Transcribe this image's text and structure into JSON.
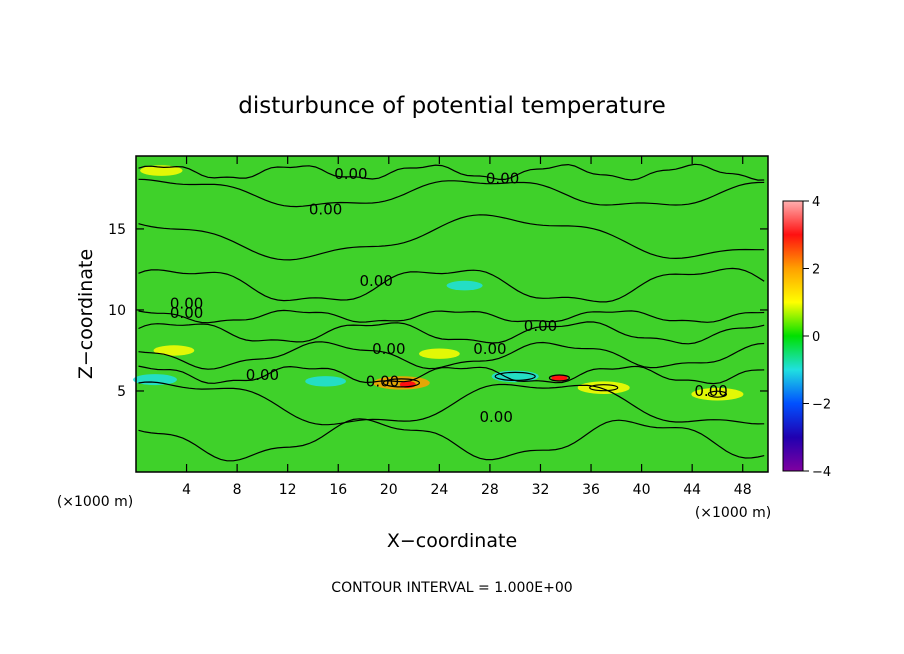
{
  "chart_data": {
    "type": "heatmap",
    "title": "disturbunce of potential temperature",
    "xlabel": "X−coordinate",
    "ylabel": "Z−coordinate",
    "x_unit_left": "(×1000 m)",
    "x_unit_right": "(×1000 m)",
    "footer": "CONTOUR INTERVAL = 1.000E+00",
    "xlim": [
      0,
      50
    ],
    "ylim": [
      0,
      19.5
    ],
    "xticks": [
      4,
      8,
      12,
      16,
      20,
      24,
      28,
      32,
      36,
      40,
      44,
      48
    ],
    "yticks": [
      5,
      10,
      15
    ],
    "colorbar": {
      "range": [
        -4,
        4
      ],
      "ticks": [
        4,
        2,
        0,
        -2,
        -4
      ],
      "colors": [
        "#ffb0b0",
        "#ff1010",
        "#ffa000",
        "#ffff00",
        "#00e000",
        "#20e0e0",
        "#0050ff",
        "#2000b0",
        "#8000a0"
      ]
    },
    "contour_labels": [
      {
        "text": "0.00",
        "x": 17,
        "y": 18.4
      },
      {
        "text": "0.00",
        "x": 29,
        "y": 18.1
      },
      {
        "text": "0.00",
        "x": 15,
        "y": 16.2
      },
      {
        "text": "0.00",
        "x": 19,
        "y": 11.8
      },
      {
        "text": "0.00",
        "x": 4,
        "y": 10.4
      },
      {
        "text": "0.00",
        "x": 4,
        "y": 9.8
      },
      {
        "text": "0.00",
        "x": 32,
        "y": 9.0
      },
      {
        "text": "0.00",
        "x": 20,
        "y": 7.6
      },
      {
        "text": "0.00",
        "x": 28,
        "y": 7.6
      },
      {
        "text": "0.00",
        "x": 10,
        "y": 6.0
      },
      {
        "text": "0.00",
        "x": 19.5,
        "y": 5.6
      },
      {
        "text": "0.00",
        "x": 45.5,
        "y": 5.0
      },
      {
        "text": "0.00",
        "x": 28.5,
        "y": 3.4
      }
    ],
    "features": [
      {
        "kind": "warm",
        "x": 21,
        "y": 5.5,
        "value": 1.8
      },
      {
        "kind": "warm",
        "x": 21.5,
        "y": 5.4,
        "value": 3.5
      },
      {
        "kind": "warm",
        "x": 33.5,
        "y": 5.8,
        "value": 3.0
      },
      {
        "kind": "warm",
        "x": 37,
        "y": 5.2,
        "value": 1.5
      },
      {
        "kind": "warm",
        "x": 46,
        "y": 4.8,
        "value": 1.5
      },
      {
        "kind": "cold",
        "x": 1.5,
        "y": 5.7,
        "value": -1.0
      },
      {
        "kind": "cold",
        "x": 30,
        "y": 5.9,
        "value": -1.2
      },
      {
        "kind": "cold",
        "x": 15,
        "y": 5.6,
        "value": -0.8
      },
      {
        "kind": "warm",
        "x": 3,
        "y": 7.5,
        "value": 0.8
      },
      {
        "kind": "warm",
        "x": 24,
        "y": 7.3,
        "value": 0.8
      },
      {
        "kind": "cold",
        "x": 26,
        "y": 11.5,
        "value": -0.5
      },
      {
        "kind": "warm",
        "x": 2,
        "y": 18.6,
        "value": 0.9
      }
    ]
  }
}
